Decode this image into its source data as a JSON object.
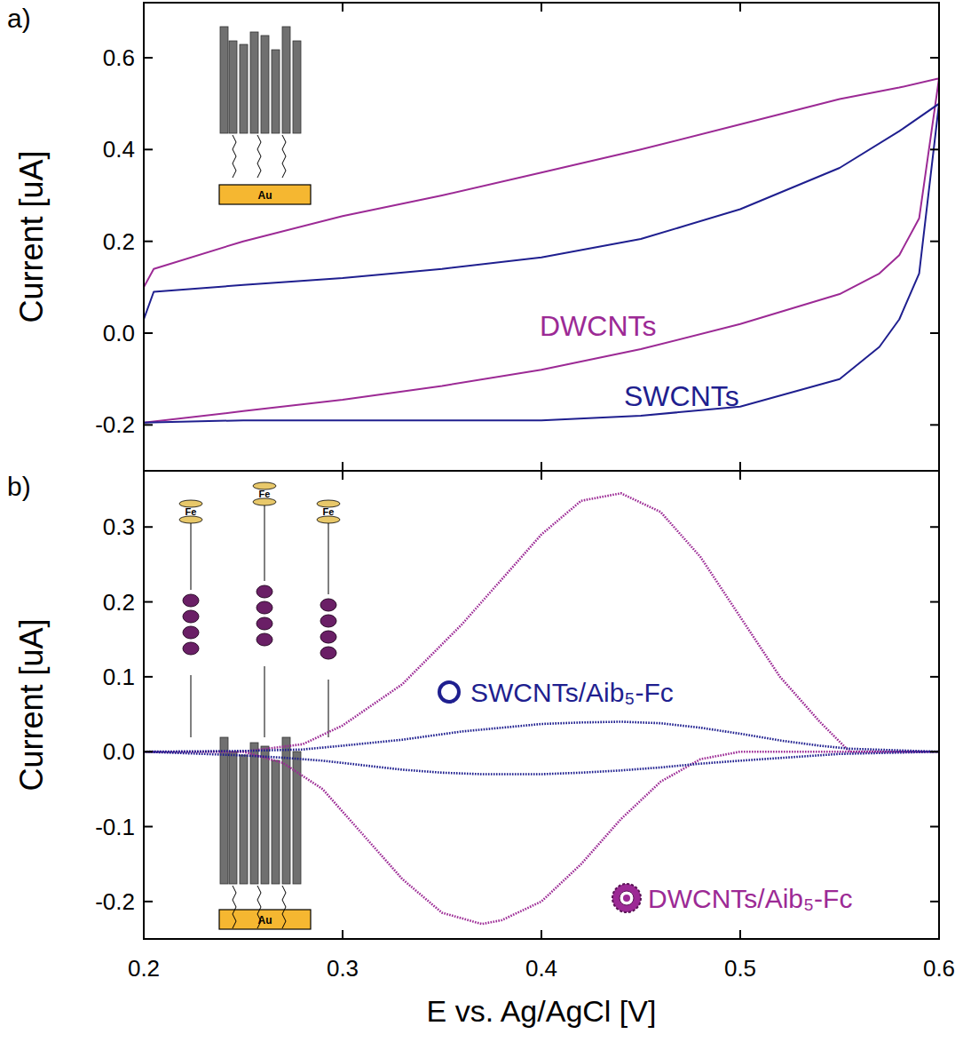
{
  "chart_data": [
    {
      "type": "line",
      "title": "a)",
      "y_label": "Current [uA]",
      "annotations": [
        "Au"
      ],
      "tick_labels": "y",
      "xlim": [
        0.2,
        0.6
      ],
      "xticks": [
        0.2,
        0.3,
        0.4,
        0.5,
        0.6
      ],
      "ylim": [
        -0.3,
        0.72
      ],
      "yticks": [
        -0.2,
        {
          "value": 0,
          "label": "0.0"
        },
        0.2,
        0.4,
        0.6
      ],
      "x": [
        0.2,
        0.205,
        0.25,
        0.3,
        0.35,
        0.4,
        0.45,
        0.5,
        0.55,
        0.58,
        0.6,
        0.59,
        0.58,
        0.57,
        0.55,
        0.5,
        0.45,
        0.4,
        0.35,
        0.3,
        0.25,
        0.2
      ],
      "series": [
        {
          "name": "DWCNTs",
          "color": "#9c2a95",
          "line_style": "solid",
          "values": [
            0.1,
            0.14,
            0.2,
            0.255,
            0.3,
            0.35,
            0.4,
            0.455,
            0.51,
            0.535,
            0.555,
            0.25,
            0.17,
            0.13,
            0.085,
            0.02,
            -0.035,
            -0.08,
            -0.115,
            -0.145,
            -0.17,
            -0.195
          ]
        },
        {
          "name": "SWCNTs",
          "color": "#1f1f8f",
          "line_style": "solid",
          "values": [
            0.03,
            0.09,
            0.105,
            0.12,
            0.14,
            0.165,
            0.205,
            0.27,
            0.36,
            0.44,
            0.5,
            0.13,
            0.03,
            -0.03,
            -0.1,
            -0.16,
            -0.18,
            -0.19,
            -0.19,
            -0.19,
            -0.19,
            -0.195
          ]
        }
      ]
    },
    {
      "type": "line",
      "title": "b)",
      "y_label": "Current [uA]",
      "x_label": "E vs. Ag/AgCl [V]",
      "annotations": [
        "Au",
        "Fe"
      ],
      "xlim": [
        0.2,
        0.6
      ],
      "xticks": [
        0.2,
        0.3,
        0.4,
        0.5,
        0.6
      ],
      "ylim": [
        -0.25,
        0.375
      ],
      "yticks": [
        -0.2,
        -0.1,
        {
          "value": 0,
          "label": "0.0"
        },
        0.1,
        0.2,
        0.3
      ],
      "x": [
        0.2,
        0.25,
        0.28,
        0.3,
        0.33,
        0.36,
        0.38,
        0.4,
        0.42,
        0.44,
        0.46,
        0.48,
        0.5,
        0.52,
        0.54,
        0.555,
        0.6,
        0.55,
        0.5,
        0.48,
        0.46,
        0.44,
        0.42,
        0.4,
        0.38,
        0.37,
        0.35,
        0.33,
        0.31,
        0.29,
        0.27,
        0.25,
        0.2
      ],
      "series": [
        {
          "name": "DWCNTs/Aib₅-Fc",
          "color": "#9c2a95",
          "line_style": "dotted",
          "values": [
            0,
            0,
            0.01,
            0.035,
            0.09,
            0.17,
            0.23,
            0.29,
            0.335,
            0.345,
            0.32,
            0.26,
            0.18,
            0.1,
            0.04,
            0,
            0,
            0,
            0,
            -0.01,
            -0.04,
            -0.09,
            -0.15,
            -0.2,
            -0.225,
            -0.23,
            -0.215,
            -0.17,
            -0.11,
            -0.05,
            -0.015,
            0,
            0
          ]
        },
        {
          "name": "SWCNTs/Aib₅-Fc",
          "color": "#1f1f8f",
          "line_style": "dotted",
          "values": [
            0,
            0.001,
            0.003,
            0.008,
            0.016,
            0.027,
            0.032,
            0.037,
            0.039,
            0.04,
            0.038,
            0.032,
            0.024,
            0.015,
            0.008,
            0.004,
            0,
            -0.003,
            -0.012,
            -0.016,
            -0.021,
            -0.025,
            -0.028,
            -0.03,
            -0.03,
            -0.03,
            -0.028,
            -0.024,
            -0.018,
            -0.012,
            -0.008,
            -0.005,
            0
          ]
        }
      ]
    }
  ]
}
